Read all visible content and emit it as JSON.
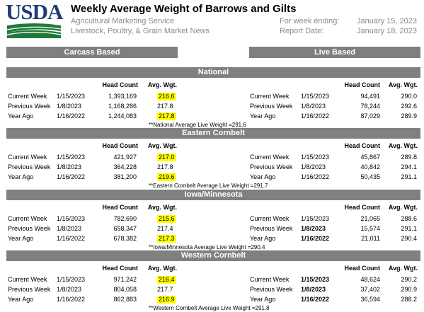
{
  "header": {
    "logo_text": "USDA",
    "title": "Weekly Average Weight of Barrows and Gilts",
    "agency": "Agricultural Marketing Service",
    "division": "Livestock, Poultry, & Grain Market News",
    "week_ending_label": "For week ending:",
    "week_ending_value": "January 15, 2023",
    "report_date_label": "Report Date:",
    "report_date_value": "January 18, 2023"
  },
  "columns": {
    "carcass_title": "Carcass Based",
    "live_title": "Live Based",
    "head_count": "Head Count",
    "avg_wgt": "Avg. Wgt."
  },
  "sections": [
    {
      "name": "National",
      "carcass": [
        {
          "label": "Current Week",
          "date": "1/15/2023",
          "head": "1,393,169",
          "wgt": "216.6",
          "hl": true
        },
        {
          "label": "Previous Week",
          "date": "1/8/2023",
          "head": "1,168,286",
          "wgt": "217.8",
          "hl": false
        },
        {
          "label": "Year Ago",
          "date": "1/16/2022",
          "head": "1,244,083",
          "wgt": "217.8",
          "hl": true
        }
      ],
      "live": [
        {
          "label": "Current Week",
          "date": "1/15/2023",
          "head": "94,491",
          "wgt": "290.0",
          "bold_date": false
        },
        {
          "label": "Previous Week",
          "date": "1/8/2023",
          "head": "78,244",
          "wgt": "292.6",
          "bold_date": false
        },
        {
          "label": "Year Ago",
          "date": "1/16/2022",
          "head": "87,029",
          "wgt": "289.9",
          "bold_date": false
        }
      ],
      "note": "**National Average Live Weight =291.6"
    },
    {
      "name": "Eastern Cornbelt",
      "carcass": [
        {
          "label": "Current Week",
          "date": "1/15/2023",
          "head": "421,927",
          "wgt": "217.0",
          "hl": true
        },
        {
          "label": "Previous Week",
          "date": "1/8/2023",
          "head": "364,228",
          "wgt": "217.8",
          "hl": false
        },
        {
          "label": "Year Ago",
          "date": "1/16/2022",
          "head": "381,200",
          "wgt": "219.6",
          "hl": true
        }
      ],
      "live": [
        {
          "label": "Current Week",
          "date": "1/15/2023",
          "head": "45,867",
          "wgt": "289.8",
          "bold_date": false
        },
        {
          "label": "Previous Week",
          "date": "1/8/2023",
          "head": "40,842",
          "wgt": "294.1",
          "bold_date": false
        },
        {
          "label": "Year Ago",
          "date": "1/16/2022",
          "head": "50,435",
          "wgt": "291.1",
          "bold_date": false
        }
      ],
      "note": "**Eastern Cornbelt Average Live Weight =291.7"
    },
    {
      "name": "Iowa/Minnesota",
      "carcass": [
        {
          "label": "Current Week",
          "date": "1/15/2023",
          "head": "782,690",
          "wgt": "215.6",
          "hl": true
        },
        {
          "label": "Previous Week",
          "date": "1/8/2023",
          "head": "658,347",
          "wgt": "217.4",
          "hl": false
        },
        {
          "label": "Year Ago",
          "date": "1/16/2022",
          "head": "678,382",
          "wgt": "217.3",
          "hl": true
        }
      ],
      "live": [
        {
          "label": "Current Week",
          "date": "1/15/2023",
          "head": "21,065",
          "wgt": "288.6",
          "bold_date": false
        },
        {
          "label": "Previous Week",
          "date": "1/8/2023",
          "head": "15,574",
          "wgt": "291.1",
          "bold_date": true
        },
        {
          "label": "Year Ago",
          "date": "1/16/2022",
          "head": "21,011",
          "wgt": "290.4",
          "bold_date": true
        }
      ],
      "note": "**Iowa/Minnesota Average Live Weight =290.4"
    },
    {
      "name": "Western Cornbelt",
      "carcass": [
        {
          "label": "Current Week",
          "date": "1/15/2023",
          "head": "971,242",
          "wgt": "216.4",
          "hl": true
        },
        {
          "label": "Previous Week",
          "date": "1/8/2023",
          "head": "804,058",
          "wgt": "217.7",
          "hl": false
        },
        {
          "label": "Year Ago",
          "date": "1/16/2022",
          "head": "862,883",
          "wgt": "216.9",
          "hl": true
        }
      ],
      "live": [
        {
          "label": "Current Week",
          "date": "1/15/2023",
          "head": "48,624",
          "wgt": "290.2",
          "bold_date": true
        },
        {
          "label": "Previous Week",
          "date": "1/8/2023",
          "head": "37,402",
          "wgt": "290.9",
          "bold_date": true
        },
        {
          "label": "Year Ago",
          "date": "1/16/2022",
          "head": "36,594",
          "wgt": "288.2",
          "bold_date": true
        }
      ],
      "note": "**Western Cornbelt Average Live Weight =291.8"
    }
  ]
}
